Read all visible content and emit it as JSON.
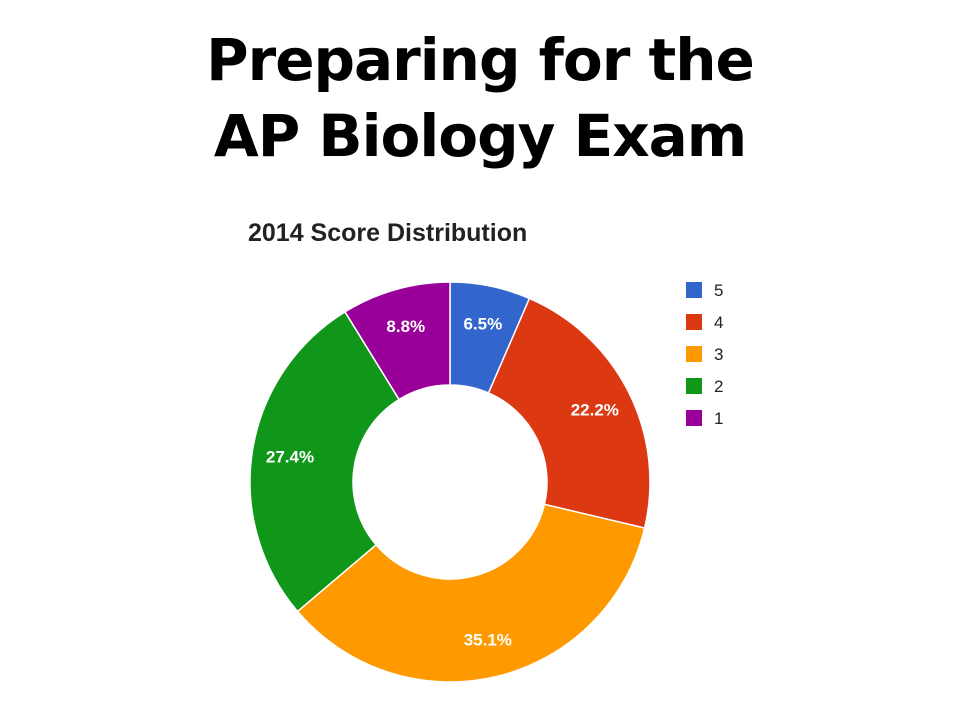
{
  "slide": {
    "title_line1": "Preparing for the",
    "title_line2": "AP Biology Exam"
  },
  "chart_data": {
    "type": "pie",
    "style": "donut",
    "title": "2014 Score Distribution",
    "categories": [
      "5",
      "4",
      "3",
      "2",
      "1"
    ],
    "values": [
      6.5,
      22.2,
      35.1,
      27.4,
      8.8
    ],
    "labels": [
      "6.5%",
      "22.2%",
      "35.1%",
      "27.4%",
      "8.8%"
    ],
    "colors": [
      "#3366cc",
      "#dc3912",
      "#ff9900",
      "#109618",
      "#990099"
    ],
    "legend_position": "right",
    "start": "top",
    "direction": "clockwise"
  }
}
